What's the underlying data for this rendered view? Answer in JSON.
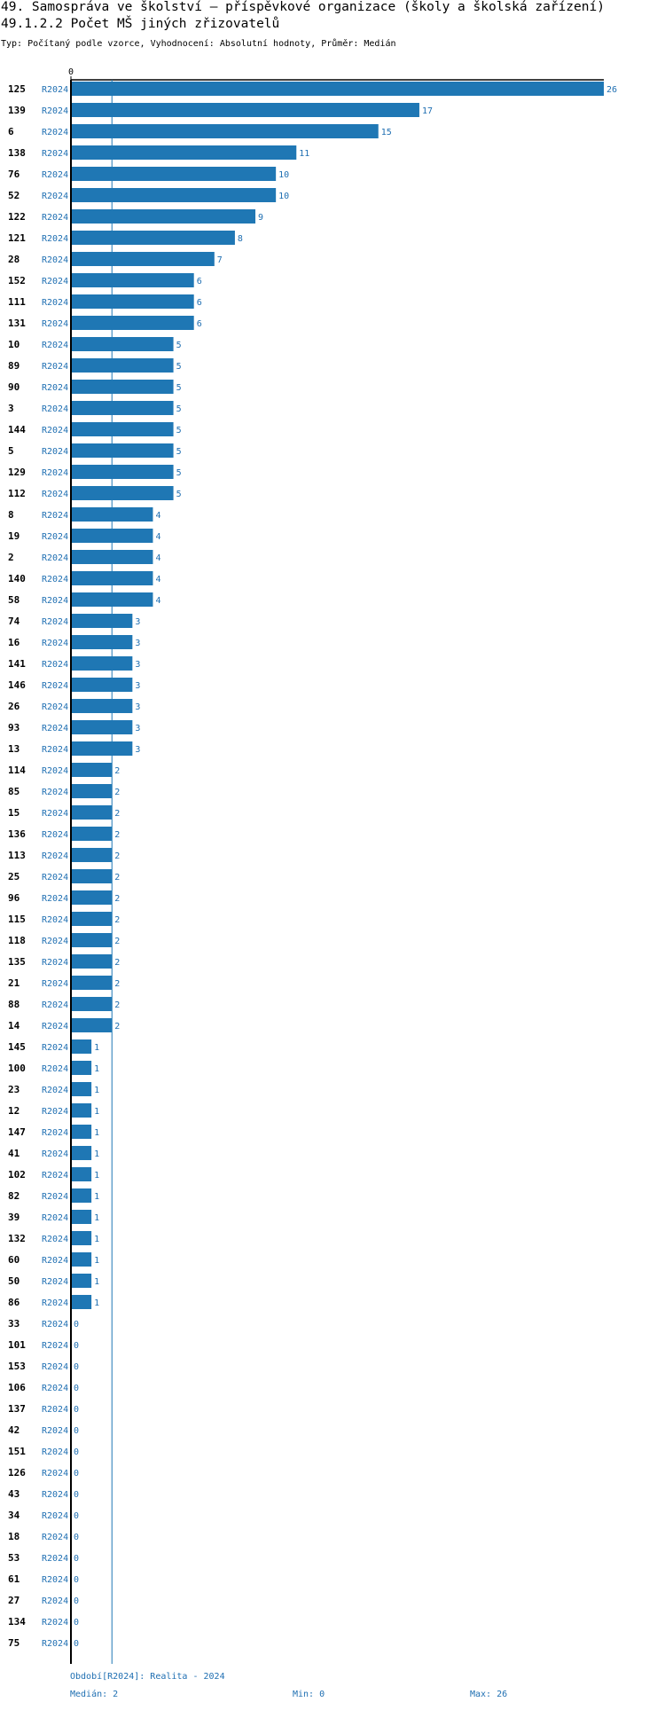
{
  "header": {
    "title": "49. Samospráva ve školství – příspěvkové organizace (školy a školská zařízení)",
    "subtitle_title": "49.1.2.2 Počet MŠ jiných zřizovatelů",
    "subtitle": "Typ: Počítaný podle vzorce, Vyhodnocení: Absolutní hodnoty, Průměr: Medián"
  },
  "footer": {
    "period": "Období[R2024]: Realita - 2024",
    "median": "Medián: 2",
    "min": "Min: 0",
    "max": "Max: 26"
  },
  "colors": {
    "bar": "#1f77b4",
    "label": "#1f6fb2",
    "axis": "#000000"
  },
  "chart_data": {
    "type": "bar",
    "orientation": "horizontal",
    "title": "49.1.2.2 Počet MŠ jiných zřizovatelů",
    "axis_tick": "0",
    "series_label": "R2024",
    "xlim": [
      0,
      26
    ],
    "median": 2,
    "categories": [
      "125",
      "139",
      "6",
      "138",
      "76",
      "52",
      "122",
      "121",
      "28",
      "152",
      "111",
      "131",
      "10",
      "89",
      "90",
      "3",
      "144",
      "5",
      "129",
      "112",
      "8",
      "19",
      "2",
      "140",
      "58",
      "74",
      "16",
      "141",
      "146",
      "26",
      "93",
      "13",
      "114",
      "85",
      "15",
      "136",
      "113",
      "25",
      "96",
      "115",
      "118",
      "135",
      "21",
      "88",
      "14",
      "145",
      "100",
      "23",
      "12",
      "147",
      "41",
      "102",
      "82",
      "39",
      "132",
      "60",
      "50",
      "86",
      "33",
      "101",
      "153",
      "106",
      "137",
      "42",
      "151",
      "126",
      "43",
      "34",
      "18",
      "53",
      "61",
      "27",
      "134",
      "75"
    ],
    "values": [
      26,
      17,
      15,
      11,
      10,
      10,
      9,
      8,
      7,
      6,
      6,
      6,
      5,
      5,
      5,
      5,
      5,
      5,
      5,
      5,
      4,
      4,
      4,
      4,
      4,
      3,
      3,
      3,
      3,
      3,
      3,
      3,
      2,
      2,
      2,
      2,
      2,
      2,
      2,
      2,
      2,
      2,
      2,
      2,
      2,
      1,
      1,
      1,
      1,
      1,
      1,
      1,
      1,
      1,
      1,
      1,
      1,
      1,
      0,
      0,
      0,
      0,
      0,
      0,
      0,
      0,
      0,
      0,
      0,
      0,
      0,
      0,
      0,
      0
    ]
  }
}
